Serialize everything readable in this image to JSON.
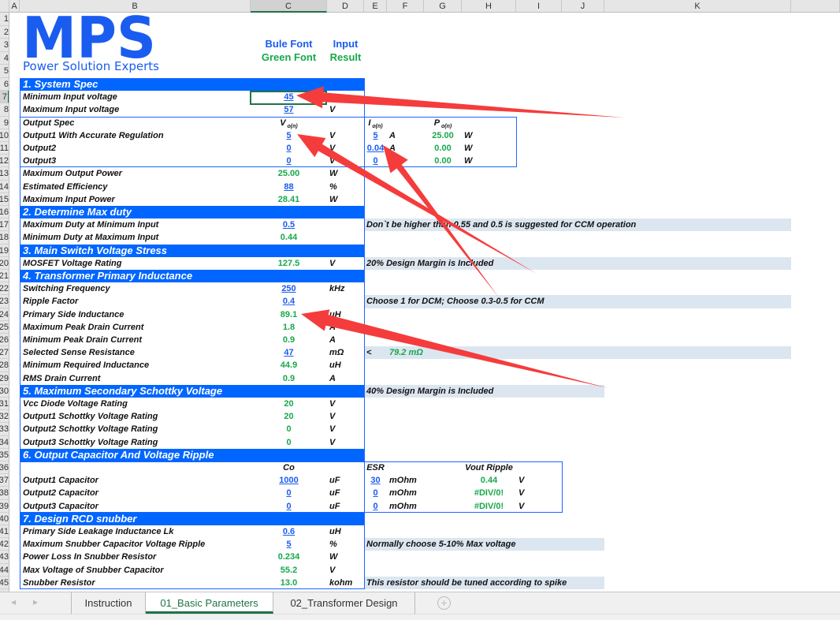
{
  "colors": {
    "input": "#1a5cf0",
    "result": "#17a84a",
    "section": "#0066ff",
    "note_bg": "#dce6f1",
    "annotation_arrow": "#f53c3c"
  },
  "columns": [
    "A",
    "B",
    "C",
    "D",
    "E",
    "F",
    "G",
    "H",
    "I",
    "J",
    "K"
  ],
  "selected_cell": "C7",
  "logo": {
    "mark": "MPS",
    "tagline": "Power Solution Experts"
  },
  "legend": {
    "blue": "Bule Font",
    "green": "Green Font",
    "input": "Input",
    "result": "Result"
  },
  "sections": [
    {
      "row": 6,
      "title": "1. System Spec"
    },
    {
      "row": 16,
      "title": "2. Determine Max duty"
    },
    {
      "row": 19,
      "title": "3. Main Switch Voltage Stress"
    },
    {
      "row": 21,
      "title": "4. Transformer Primary Inductance"
    },
    {
      "row": 30,
      "title": "5. Maximum Secondary Schottky Voltage"
    },
    {
      "row": 35,
      "title": "6. Output Capacitor And Voltage Ripple"
    },
    {
      "row": 40,
      "title": "7. Design RCD snubber"
    }
  ],
  "rows": [
    {
      "row": 7,
      "cells": [
        {
          "col": "B",
          "kind": "label",
          "text": "Minimum Input voltage"
        },
        {
          "col": "C",
          "kind": "input",
          "text": "45"
        }
      ]
    },
    {
      "row": 8,
      "cells": [
        {
          "col": "B",
          "kind": "label",
          "text": "Maximum Input voltage"
        },
        {
          "col": "C",
          "kind": "input",
          "text": "57"
        },
        {
          "col": "D",
          "kind": "unit",
          "text": "V"
        }
      ]
    },
    {
      "row": 9,
      "cells": [
        {
          "col": "B",
          "kind": "label",
          "text": "Output Spec"
        },
        {
          "col": "C",
          "kind": "sym",
          "text": "V",
          "sub": "o(n)"
        },
        {
          "col": "E",
          "kind": "sym",
          "text": "I",
          "sub": "o(n)"
        },
        {
          "col": "G",
          "kind": "sym",
          "text": "P",
          "sub": "o(n)"
        }
      ]
    },
    {
      "row": 10,
      "cells": [
        {
          "col": "B",
          "kind": "label",
          "text": "Output1 With Accurate Regulation"
        },
        {
          "col": "C",
          "kind": "input",
          "text": "5"
        },
        {
          "col": "D",
          "kind": "unit",
          "text": "V"
        },
        {
          "col": "E",
          "kind": "input",
          "text": "5"
        },
        {
          "col": "F",
          "kind": "unit",
          "text": "A"
        },
        {
          "col": "G",
          "kind": "result",
          "text": "25.00"
        },
        {
          "col": "H",
          "kind": "unit",
          "text": "W"
        }
      ]
    },
    {
      "row": 11,
      "cells": [
        {
          "col": "B",
          "kind": "label",
          "text": "Output2"
        },
        {
          "col": "C",
          "kind": "input",
          "text": "0"
        },
        {
          "col": "D",
          "kind": "unit",
          "text": "V"
        },
        {
          "col": "E",
          "kind": "input",
          "text": "0.04"
        },
        {
          "col": "F",
          "kind": "unit",
          "text": "A"
        },
        {
          "col": "G",
          "kind": "result",
          "text": "0.00"
        },
        {
          "col": "H",
          "kind": "unit",
          "text": "W"
        }
      ]
    },
    {
      "row": 12,
      "cells": [
        {
          "col": "B",
          "kind": "label",
          "text": "Output3"
        },
        {
          "col": "C",
          "kind": "input",
          "text": "0"
        },
        {
          "col": "D",
          "kind": "unit",
          "text": "V"
        },
        {
          "col": "E",
          "kind": "input",
          "text": "0"
        },
        {
          "col": "F",
          "kind": "unit",
          "text": "A"
        },
        {
          "col": "G",
          "kind": "result",
          "text": "0.00"
        },
        {
          "col": "H",
          "kind": "unit",
          "text": "W"
        }
      ]
    },
    {
      "row": 13,
      "cells": [
        {
          "col": "B",
          "kind": "label",
          "text": "Maximum Output Power"
        },
        {
          "col": "C",
          "kind": "result",
          "text": "25.00"
        },
        {
          "col": "D",
          "kind": "unit",
          "text": "W"
        }
      ]
    },
    {
      "row": 14,
      "cells": [
        {
          "col": "B",
          "kind": "label",
          "text": "Estimated Efficiency"
        },
        {
          "col": "C",
          "kind": "input",
          "text": "88"
        },
        {
          "col": "D",
          "kind": "unit",
          "text": "%"
        }
      ]
    },
    {
      "row": 15,
      "cells": [
        {
          "col": "B",
          "kind": "label",
          "text": "Maximum Input Power"
        },
        {
          "col": "C",
          "kind": "result",
          "text": "28.41"
        },
        {
          "col": "D",
          "kind": "unit",
          "text": "W"
        }
      ]
    },
    {
      "row": 17,
      "cells": [
        {
          "col": "B",
          "kind": "label",
          "text": "Maximum Duty at Minimum Input"
        },
        {
          "col": "C",
          "kind": "input",
          "text": "0.5"
        },
        {
          "col": "E",
          "kind": "note",
          "text": "Don`t be higher than 0.55 and 0.5 is suggested for CCM operation"
        }
      ]
    },
    {
      "row": 18,
      "cells": [
        {
          "col": "B",
          "kind": "label",
          "text": "Minimum Duty at Maximum Input"
        },
        {
          "col": "C",
          "kind": "result",
          "text": "0.44"
        }
      ]
    },
    {
      "row": 20,
      "cells": [
        {
          "col": "B",
          "kind": "label",
          "text": "MOSFET Voltage Rating"
        },
        {
          "col": "C",
          "kind": "result",
          "text": "127.5"
        },
        {
          "col": "D",
          "kind": "unit",
          "text": "V"
        },
        {
          "col": "E",
          "kind": "note",
          "text": "20% Design Margin is Included"
        }
      ]
    },
    {
      "row": 22,
      "cells": [
        {
          "col": "B",
          "kind": "label",
          "text": "Switching Frequency"
        },
        {
          "col": "C",
          "kind": "input",
          "text": "250"
        },
        {
          "col": "D",
          "kind": "unit",
          "text": "kHz"
        }
      ]
    },
    {
      "row": 23,
      "cells": [
        {
          "col": "B",
          "kind": "label",
          "text": "Ripple Factor"
        },
        {
          "col": "C",
          "kind": "input",
          "text": "0.4"
        },
        {
          "col": "E",
          "kind": "note",
          "text": "Choose 1 for DCM; Choose 0.3-0.5 for CCM"
        }
      ]
    },
    {
      "row": 24,
      "cells": [
        {
          "col": "B",
          "kind": "label",
          "text": "Primary Side Inductance"
        },
        {
          "col": "C",
          "kind": "result",
          "text": "89.1"
        },
        {
          "col": "D",
          "kind": "unit",
          "text": "uH"
        }
      ]
    },
    {
      "row": 25,
      "cells": [
        {
          "col": "B",
          "kind": "label",
          "text": "Maximum Peak Drain Current"
        },
        {
          "col": "C",
          "kind": "result",
          "text": "1.8"
        },
        {
          "col": "D",
          "kind": "unit",
          "text": "A"
        }
      ]
    },
    {
      "row": 26,
      "cells": [
        {
          "col": "B",
          "kind": "label",
          "text": "Minimum Peak Drain Current"
        },
        {
          "col": "C",
          "kind": "result",
          "text": "0.9"
        },
        {
          "col": "D",
          "kind": "unit",
          "text": "A"
        }
      ]
    },
    {
      "row": 27,
      "cells": [
        {
          "col": "B",
          "kind": "label",
          "text": "Selected Sense Resistance"
        },
        {
          "col": "C",
          "kind": "input",
          "text": "47"
        },
        {
          "col": "D",
          "kind": "unit",
          "text": "mΩ"
        },
        {
          "col": "E",
          "kind": "note",
          "text": "<"
        },
        {
          "col": "F",
          "kind": "resultleft",
          "text": "79.2 mΩ"
        }
      ]
    },
    {
      "row": 28,
      "cells": [
        {
          "col": "B",
          "kind": "label",
          "text": "Minimum Required Inductance"
        },
        {
          "col": "C",
          "kind": "result",
          "text": "44.9"
        },
        {
          "col": "D",
          "kind": "unit",
          "text": "uH"
        }
      ]
    },
    {
      "row": 29,
      "cells": [
        {
          "col": "B",
          "kind": "label",
          "text": "RMS Drain Current"
        },
        {
          "col": "C",
          "kind": "result",
          "text": "0.9"
        },
        {
          "col": "D",
          "kind": "unit",
          "text": "A"
        }
      ]
    },
    {
      "row": 30,
      "cells": [
        {
          "col": "E",
          "kind": "note",
          "text": "40% Design Margin is Included"
        }
      ]
    },
    {
      "row": 31,
      "cells": [
        {
          "col": "B",
          "kind": "label",
          "text": "Vcc Diode Voltage Rating"
        },
        {
          "col": "C",
          "kind": "result",
          "text": "20"
        },
        {
          "col": "D",
          "kind": "unit",
          "text": "V"
        }
      ]
    },
    {
      "row": 32,
      "cells": [
        {
          "col": "B",
          "kind": "label",
          "text": "Output1  Schottky Voltage Rating"
        },
        {
          "col": "C",
          "kind": "result",
          "text": "20"
        },
        {
          "col": "D",
          "kind": "unit",
          "text": "V"
        }
      ]
    },
    {
      "row": 33,
      "cells": [
        {
          "col": "B",
          "kind": "label",
          "text": "Output2  Schottky Voltage Rating"
        },
        {
          "col": "C",
          "kind": "result",
          "text": "0"
        },
        {
          "col": "D",
          "kind": "unit",
          "text": "V"
        }
      ]
    },
    {
      "row": 34,
      "cells": [
        {
          "col": "B",
          "kind": "label",
          "text": "Output3  Schottky Voltage Rating"
        },
        {
          "col": "C",
          "kind": "result",
          "text": "0"
        },
        {
          "col": "D",
          "kind": "unit",
          "text": "V"
        }
      ]
    },
    {
      "row": 36,
      "cells": [
        {
          "col": "C",
          "kind": "head",
          "text": "Co"
        },
        {
          "col": "E",
          "kind": "head",
          "text": "ESR"
        },
        {
          "col": "H",
          "kind": "head",
          "text": "Vout Ripple"
        }
      ]
    },
    {
      "row": 37,
      "cells": [
        {
          "col": "B",
          "kind": "label",
          "text": "Output1  Capacitor"
        },
        {
          "col": "C",
          "kind": "input",
          "text": "1000"
        },
        {
          "col": "D",
          "kind": "unit",
          "text": "uF"
        },
        {
          "col": "E",
          "kind": "input",
          "text": "30"
        },
        {
          "col": "F",
          "kind": "unit",
          "text": "mOhm"
        },
        {
          "col": "H",
          "kind": "result",
          "text": "0.44"
        },
        {
          "col": "I",
          "kind": "unit",
          "text": "V"
        }
      ]
    },
    {
      "row": 38,
      "cells": [
        {
          "col": "B",
          "kind": "label",
          "text": "Output2  Capacitor"
        },
        {
          "col": "C",
          "kind": "input",
          "text": "0"
        },
        {
          "col": "D",
          "kind": "unit",
          "text": "uF"
        },
        {
          "col": "E",
          "kind": "input",
          "text": "0"
        },
        {
          "col": "F",
          "kind": "unit",
          "text": "mOhm"
        },
        {
          "col": "H",
          "kind": "result",
          "text": "#DIV/0!"
        },
        {
          "col": "I",
          "kind": "unit",
          "text": "V"
        }
      ]
    },
    {
      "row": 39,
      "cells": [
        {
          "col": "B",
          "kind": "label",
          "text": "Output3  Capacitor"
        },
        {
          "col": "C",
          "kind": "input",
          "text": "0"
        },
        {
          "col": "D",
          "kind": "unit",
          "text": "uF"
        },
        {
          "col": "E",
          "kind": "input",
          "text": "0"
        },
        {
          "col": "F",
          "kind": "unit",
          "text": "mOhm"
        },
        {
          "col": "H",
          "kind": "result",
          "text": "#DIV/0!"
        },
        {
          "col": "I",
          "kind": "unit",
          "text": "V"
        }
      ]
    },
    {
      "row": 41,
      "cells": [
        {
          "col": "B",
          "kind": "label",
          "text": "Primary Side Leakage Inductance Lk"
        },
        {
          "col": "C",
          "kind": "input",
          "text": "0.6"
        },
        {
          "col": "D",
          "kind": "unit",
          "text": "uH"
        }
      ]
    },
    {
      "row": 42,
      "cells": [
        {
          "col": "B",
          "kind": "label",
          "text": "Maximum Snubber Capacitor Voltage Ripple"
        },
        {
          "col": "C",
          "kind": "input",
          "text": "5"
        },
        {
          "col": "D",
          "kind": "unit",
          "text": "%"
        },
        {
          "col": "E",
          "kind": "note",
          "text": "Normally choose 5-10% Max voltage"
        }
      ]
    },
    {
      "row": 43,
      "cells": [
        {
          "col": "B",
          "kind": "label",
          "text": "Power Loss In Snubber Resistor"
        },
        {
          "col": "C",
          "kind": "result",
          "text": "0.234"
        },
        {
          "col": "D",
          "kind": "unit",
          "text": "W"
        }
      ]
    },
    {
      "row": 44,
      "cells": [
        {
          "col": "B",
          "kind": "label",
          "text": "Max Voltage of Snubber Capacitor"
        },
        {
          "col": "C",
          "kind": "result",
          "text": "55.2"
        },
        {
          "col": "D",
          "kind": "unit",
          "text": "V"
        }
      ]
    },
    {
      "row": 45,
      "cells": [
        {
          "col": "B",
          "kind": "label",
          "text": "Snubber Resistor"
        },
        {
          "col": "C",
          "kind": "result",
          "text": "13.0"
        },
        {
          "col": "D",
          "kind": "unit",
          "text": "kohm"
        },
        {
          "col": "E",
          "kind": "note",
          "text": "This resistor should be tuned according to spike"
        }
      ]
    }
  ],
  "tabs": [
    {
      "label": "Instruction",
      "active": false
    },
    {
      "label": "01_Basic Parameters",
      "active": true
    },
    {
      "label": "02_Transformer Design",
      "active": false
    }
  ]
}
